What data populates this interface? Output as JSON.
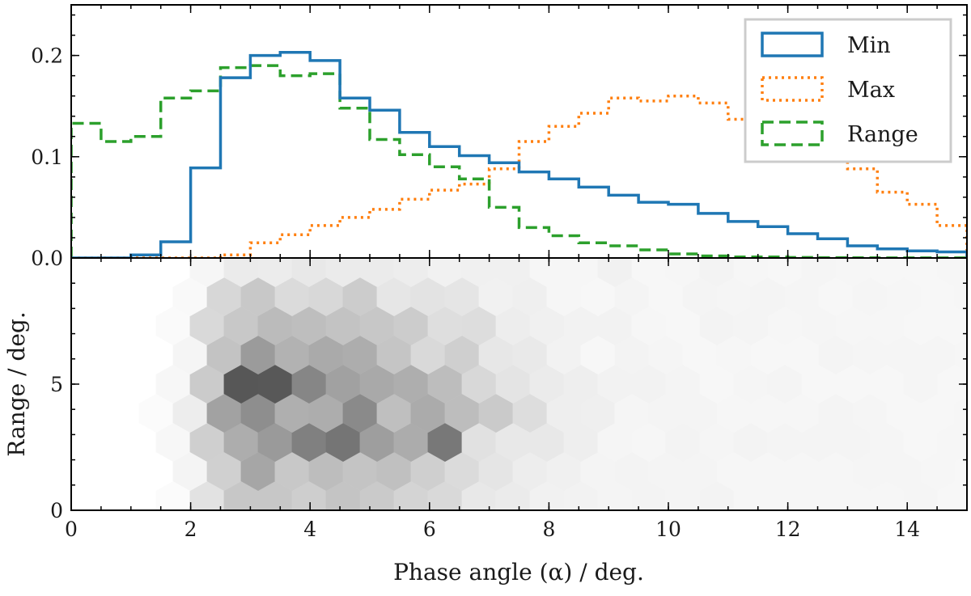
{
  "chart_data": [
    {
      "type": "histogram",
      "xlim": [
        0,
        15
      ],
      "ylim": [
        0,
        0.25
      ],
      "xlabel": "",
      "ylabel": "",
      "yticks": [
        0.0,
        0.1,
        0.2
      ],
      "ytick_labels": [
        "0.0",
        "0.1",
        "0.2"
      ],
      "bin_edges": [
        0,
        0.5,
        1,
        1.5,
        2,
        2.5,
        3,
        3.5,
        4,
        4.5,
        5,
        5.5,
        6,
        6.5,
        7,
        7.5,
        8,
        8.5,
        9,
        9.5,
        10,
        10.5,
        11,
        11.5,
        12,
        12.5,
        13,
        13.5,
        14,
        14.5,
        15
      ],
      "legend_position": "top-right",
      "series": [
        {
          "name": "Min",
          "color": "#1f77b4",
          "linestyle": "solid",
          "values": [
            0,
            0,
            0.003,
            0.016,
            0.089,
            0.178,
            0.2,
            0.203,
            0.195,
            0.158,
            0.146,
            0.124,
            0.11,
            0.101,
            0.094,
            0.085,
            0.078,
            0.07,
            0.062,
            0.055,
            0.053,
            0.044,
            0.036,
            0.031,
            0.024,
            0.019,
            0.012,
            0.009,
            0.007,
            0.006
          ]
        },
        {
          "name": "Max",
          "color": "#ff7f0e",
          "linestyle": "dotted",
          "values": [
            0,
            0,
            0,
            0,
            0,
            0.003,
            0.015,
            0.023,
            0.032,
            0.04,
            0.048,
            0.058,
            0.067,
            0.073,
            0.088,
            0.115,
            0.13,
            0.143,
            0.158,
            0.155,
            0.16,
            0.153,
            0.137,
            0.133,
            0.122,
            0.098,
            0.088,
            0.065,
            0.053,
            0.032
          ]
        },
        {
          "name": "Range",
          "color": "#2ca02c",
          "linestyle": "dashed",
          "values": [
            0.133,
            0.115,
            0.12,
            0.158,
            0.165,
            0.188,
            0.19,
            0.18,
            0.182,
            0.148,
            0.117,
            0.102,
            0.09,
            0.078,
            0.05,
            0.03,
            0.022,
            0.015,
            0.012,
            0.008,
            0.004,
            0.002,
            0.001,
            0.001,
            0.0005,
            0.0003,
            0.0002,
            0.0001,
            0.0001,
            0.0001
          ]
        }
      ]
    },
    {
      "type": "hexbin",
      "xlim": [
        0,
        15
      ],
      "ylim": [
        0,
        10
      ],
      "xlabel": "Phase angle (α) / deg.",
      "ylabel": "Range / deg.",
      "xticks": [
        0,
        2,
        4,
        6,
        8,
        10,
        12,
        14
      ],
      "xtick_labels": [
        "0",
        "2",
        "4",
        "6",
        "8",
        "10",
        "12",
        "14"
      ],
      "yticks": [
        0,
        5
      ],
      "ytick_labels": [
        "0",
        "5"
      ],
      "colormap": "greys",
      "density_peaks": [
        {
          "x": 3.0,
          "y": 4.3,
          "density": 1.0
        },
        {
          "x": 3.3,
          "y": 4.9,
          "density": 0.95
        },
        {
          "x": 3.6,
          "y": 4.3,
          "density": 0.95
        },
        {
          "x": 4.2,
          "y": 2.9,
          "density": 0.97
        },
        {
          "x": 2.8,
          "y": 4.9,
          "density": 0.75
        },
        {
          "x": 3.9,
          "y": 4.6,
          "density": 0.8
        },
        {
          "x": 4.5,
          "y": 3.6,
          "density": 0.7
        },
        {
          "x": 5.1,
          "y": 3.6,
          "density": 0.6
        },
        {
          "x": 6.3,
          "y": 2.6,
          "density": 0.5
        }
      ]
    }
  ]
}
